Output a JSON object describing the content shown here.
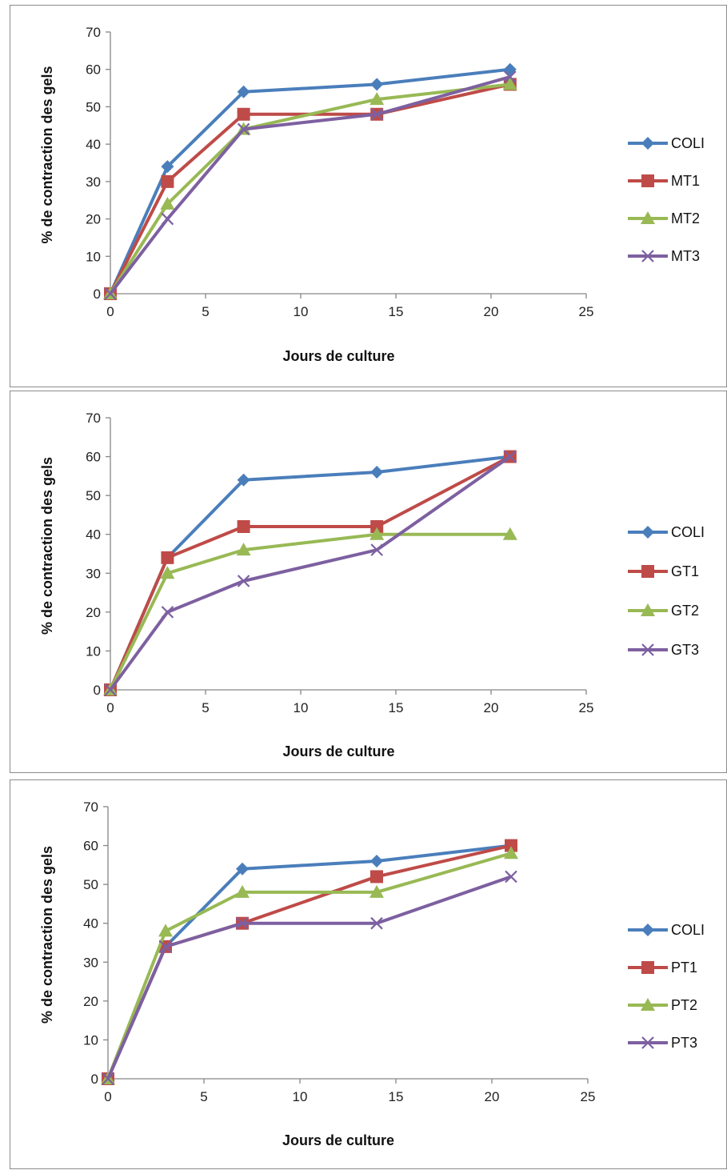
{
  "chart_data": [
    {
      "type": "line",
      "xlabel": "Jours de culture",
      "ylabel": "% de contraction des gels",
      "xlim": [
        0,
        25
      ],
      "ylim": [
        0,
        70
      ],
      "xticks": [
        0,
        5,
        10,
        15,
        20,
        25
      ],
      "yticks": [
        0,
        10,
        20,
        30,
        40,
        50,
        60,
        70
      ],
      "grid": false,
      "legend": "right",
      "x": [
        0,
        3,
        7,
        14,
        21
      ],
      "series": [
        {
          "name": "COLI",
          "color": "#4a7ebb",
          "marker": "diamond",
          "values": [
            0,
            34,
            54,
            56,
            60
          ]
        },
        {
          "name": "MT1",
          "color": "#be4b48",
          "marker": "square",
          "values": [
            0,
            30,
            48,
            48,
            56
          ]
        },
        {
          "name": "MT2",
          "color": "#98b954",
          "marker": "triangle",
          "values": [
            0,
            24,
            44,
            52,
            56
          ]
        },
        {
          "name": "MT3",
          "color": "#7d60a0",
          "marker": "x",
          "values": [
            0,
            20,
            44,
            48,
            58
          ]
        }
      ]
    },
    {
      "type": "line",
      "xlabel": "Jours de culture",
      "ylabel": "% de contraction des gels",
      "xlim": [
        0,
        25
      ],
      "ylim": [
        0,
        70
      ],
      "xticks": [
        0,
        5,
        10,
        15,
        20,
        25
      ],
      "yticks": [
        0,
        10,
        20,
        30,
        40,
        50,
        60,
        70
      ],
      "grid": false,
      "legend": "right",
      "x": [
        0,
        3,
        7,
        14,
        21
      ],
      "series": [
        {
          "name": "COLI",
          "color": "#4a7ebb",
          "marker": "diamond",
          "values": [
            0,
            34,
            54,
            56,
            60
          ]
        },
        {
          "name": "GT1",
          "color": "#be4b48",
          "marker": "square",
          "values": [
            0,
            34,
            42,
            42,
            60
          ]
        },
        {
          "name": "GT2",
          "color": "#98b954",
          "marker": "triangle",
          "values": [
            0,
            30,
            36,
            40,
            40
          ]
        },
        {
          "name": "GT3",
          "color": "#7d60a0",
          "marker": "x",
          "values": [
            0,
            20,
            28,
            36,
            60
          ]
        }
      ]
    },
    {
      "type": "line",
      "xlabel": "Jours de culture",
      "ylabel": "% de contraction des gels",
      "xlim": [
        0,
        25
      ],
      "ylim": [
        0,
        70
      ],
      "xticks": [
        0,
        5,
        10,
        15,
        20,
        25
      ],
      "yticks": [
        0,
        10,
        20,
        30,
        40,
        50,
        60,
        70
      ],
      "grid": false,
      "legend": "right",
      "x": [
        0,
        3,
        7,
        14,
        21
      ],
      "series": [
        {
          "name": "COLI",
          "color": "#4a7ebb",
          "marker": "diamond",
          "values": [
            0,
            34,
            54,
            56,
            60
          ]
        },
        {
          "name": "PT1",
          "color": "#be4b48",
          "marker": "square",
          "values": [
            0,
            34,
            40,
            52,
            60
          ]
        },
        {
          "name": "PT2",
          "color": "#98b954",
          "marker": "triangle",
          "values": [
            0,
            38,
            48,
            48,
            58
          ]
        },
        {
          "name": "PT3",
          "color": "#7d60a0",
          "marker": "x",
          "values": [
            0,
            34,
            40,
            40,
            52
          ]
        }
      ]
    }
  ]
}
